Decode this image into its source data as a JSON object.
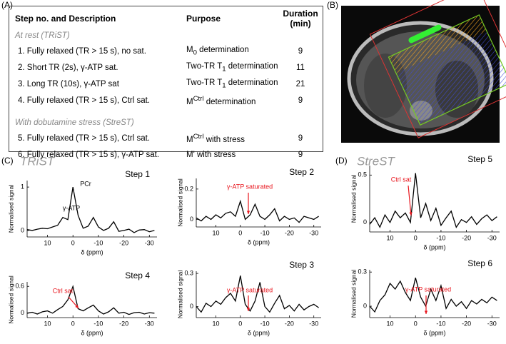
{
  "panel_labels": [
    "(A)",
    "(B)",
    "(C)",
    "(D)"
  ],
  "panel_titles": [
    "TRiST",
    "StreST"
  ],
  "table": {
    "header": [
      "Step no. and Description",
      "Purpose",
      "Duration\n(min)"
    ],
    "sections": [
      {
        "title": "At rest (TRiST)",
        "rows": [
          {
            "step": "1. Fully relaxed (TR > 15 s), no sat.",
            "purpose": [
              {
                "t": "M"
              },
              {
                "sub": "0"
              },
              {
                "t": " determination"
              }
            ],
            "duration": 9
          },
          {
            "step": "2. Short TR (2s), γ-ATP sat.",
            "purpose": [
              {
                "t": "Two-TR T"
              },
              {
                "sub": "1"
              },
              {
                "t": " determination"
              }
            ],
            "duration": 11
          },
          {
            "step": "3. Long TR (10s), γ-ATP sat",
            "purpose": [
              {
                "t": "Two-TR T"
              },
              {
                "sub": "1"
              },
              {
                "t": " determination"
              }
            ],
            "duration": 21
          },
          {
            "step": "4. Fully relaxed (TR > 15 s), Ctrl sat.",
            "purpose": [
              {
                "t": "M"
              },
              {
                "sup": "Ctrl"
              },
              {
                "t": " determination"
              }
            ],
            "duration": 9
          }
        ]
      },
      {
        "title": "With dobutamine stress (StreST)",
        "rows": [
          {
            "step": "5. Fully relaxed (TR > 15 s), Ctrl sat.",
            "purpose": [
              {
                "t": "M"
              },
              {
                "sup": "Ctrl"
              },
              {
                "t": " with stress"
              }
            ],
            "duration": 9
          },
          {
            "step": "6. Fully relaxed (TR > 15 s), γ-ATP sat.",
            "purpose": [
              {
                "t": "M' with stress"
              }
            ],
            "duration": 9
          }
        ]
      }
    ]
  },
  "chart_data": [
    {
      "type": "line",
      "title": "Step 1",
      "xlabel": "δ (ppm)",
      "ylabel": "Normalised signal",
      "color": "#000000",
      "annotations": [
        "PCr",
        "γ-ATP"
      ],
      "annotation_color": "#000000",
      "x": [
        18,
        16,
        14,
        12,
        10,
        8,
        6,
        4,
        2,
        0,
        -2,
        -4,
        -6,
        -8,
        -10,
        -12,
        -14,
        -16,
        -18,
        -20,
        -22,
        -24,
        -26,
        -28,
        -30,
        -32
      ],
      "values": [
        0.02,
        0.0,
        0.03,
        0.05,
        0.04,
        0.08,
        0.12,
        0.3,
        0.25,
        1.0,
        0.35,
        0.05,
        0.1,
        0.3,
        0.08,
        0.0,
        0.05,
        0.2,
        -0.02,
        0.0,
        0.03,
        -0.05,
        0.01,
        0.02,
        -0.03,
        0.0
      ],
      "xlim": [
        18,
        -33
      ],
      "xticks": [
        10,
        0,
        -10,
        -20,
        -30
      ],
      "ylim": [
        -0.15,
        1.15
      ],
      "yticks": [
        0,
        1
      ]
    },
    {
      "type": "line",
      "title": "Step 2",
      "xlabel": "δ (ppm)",
      "ylabel": "Normalised signal",
      "color": "#000000",
      "annotations": [
        "γ-ATP saturated"
      ],
      "annotation_color": "#e8141c",
      "x": [
        18,
        16,
        14,
        12,
        10,
        8,
        6,
        4,
        2,
        0,
        -2,
        -4,
        -6,
        -8,
        -10,
        -12,
        -14,
        -16,
        -18,
        -20,
        -22,
        -24,
        -26,
        -28,
        -30,
        -32
      ],
      "values": [
        0.01,
        -0.01,
        0.02,
        0.0,
        0.03,
        0.01,
        0.04,
        0.05,
        0.02,
        0.12,
        0.0,
        0.03,
        0.1,
        0.02,
        0.0,
        0.03,
        0.07,
        -0.01,
        0.02,
        0.0,
        0.01,
        -0.02,
        0.02,
        0.01,
        0.0,
        0.02
      ],
      "xlim": [
        18,
        -33
      ],
      "xticks": [
        10,
        0,
        -10,
        -20,
        -30
      ],
      "ylim": [
        -0.05,
        0.27
      ],
      "yticks": [
        0,
        0.2
      ]
    },
    {
      "type": "line",
      "title": "Step 4",
      "xlabel": "δ (ppm)",
      "ylabel": "Normalised signal",
      "color": "#000000",
      "annotations": [
        "Ctrl sat"
      ],
      "annotation_color": "#e8141c",
      "x": [
        18,
        16,
        14,
        12,
        10,
        8,
        6,
        4,
        2,
        0,
        -2,
        -4,
        -6,
        -8,
        -10,
        -12,
        -14,
        -16,
        -18,
        -20,
        -22,
        -24,
        -26,
        -28,
        -30,
        -32
      ],
      "values": [
        0.0,
        0.02,
        -0.02,
        0.03,
        0.05,
        0.0,
        0.08,
        0.15,
        0.3,
        0.6,
        0.1,
        0.05,
        0.12,
        0.18,
        0.05,
        -0.02,
        0.03,
        0.12,
        0.0,
        0.02,
        -0.03,
        0.01,
        0.02,
        -0.02,
        0.01,
        0.0
      ],
      "xlim": [
        18,
        -33
      ],
      "xticks": [
        10,
        0,
        -10,
        -20,
        -30
      ],
      "ylim": [
        -0.1,
        0.7
      ],
      "yticks": [
        0,
        0.6
      ]
    },
    {
      "type": "line",
      "title": "Step 3",
      "xlabel": "δ (ppm)",
      "ylabel": "Normalised signal",
      "color": "#000000",
      "annotations": [
        "γ-ATP saturated"
      ],
      "annotation_color": "#e8141c",
      "x": [
        18,
        16,
        14,
        12,
        10,
        8,
        6,
        4,
        2,
        0,
        -2,
        -4,
        -6,
        -8,
        -10,
        -12,
        -14,
        -16,
        -18,
        -20,
        -22,
        -24,
        -26,
        -28,
        -30,
        -32
      ],
      "values": [
        0.0,
        -0.05,
        0.03,
        0.0,
        0.05,
        0.02,
        0.08,
        0.12,
        0.05,
        0.28,
        0.02,
        -0.04,
        0.05,
        0.22,
        0.0,
        -0.05,
        0.03,
        0.1,
        -0.02,
        0.01,
        -0.04,
        0.02,
        -0.03,
        0.0,
        0.02,
        -0.01
      ],
      "xlim": [
        18,
        -33
      ],
      "xticks": [
        10,
        0,
        -10,
        -20,
        -30
      ],
      "ylim": [
        -0.1,
        0.32
      ],
      "yticks": [
        0,
        0.3
      ]
    },
    {
      "type": "line",
      "title": "Step 5",
      "xlabel": "δ (ppm)",
      "ylabel": "Normalised signal",
      "color": "#000000",
      "annotations": [
        "Ctrl sat"
      ],
      "annotation_color": "#e8141c",
      "x": [
        18,
        16,
        14,
        12,
        10,
        8,
        6,
        4,
        2,
        0,
        -2,
        -4,
        -6,
        -8,
        -10,
        -12,
        -14,
        -16,
        -18,
        -20,
        -22,
        -24,
        -26,
        -28,
        -30,
        -32
      ],
      "values": [
        -0.02,
        0.05,
        -0.05,
        0.08,
        0.0,
        0.12,
        0.05,
        0.1,
        0.0,
        0.52,
        0.05,
        0.2,
        0.02,
        0.15,
        -0.03,
        0.05,
        0.12,
        -0.05,
        0.03,
        0.0,
        0.06,
        -0.02,
        0.04,
        0.08,
        0.02,
        0.06
      ],
      "xlim": [
        18,
        -33
      ],
      "xticks": [
        10,
        0,
        -10,
        -20,
        -30
      ],
      "ylim": [
        -0.1,
        0.6
      ],
      "yticks": [
        0,
        0.5
      ]
    },
    {
      "type": "line",
      "title": "Step 6",
      "xlabel": "δ (ppm)",
      "ylabel": "Normalised signal",
      "color": "#000000",
      "annotations": [
        "γ-ATP saturated"
      ],
      "annotation_color": "#e8141c",
      "x": [
        18,
        16,
        14,
        12,
        10,
        8,
        6,
        4,
        2,
        0,
        -2,
        -4,
        -6,
        -8,
        -10,
        -12,
        -14,
        -16,
        -18,
        -20,
        -22,
        -24,
        -26,
        -28,
        -30,
        -32
      ],
      "values": [
        0.0,
        -0.05,
        0.05,
        0.1,
        0.2,
        0.15,
        0.22,
        0.12,
        0.05,
        0.25,
        0.08,
        0.0,
        0.15,
        0.05,
        0.18,
        -0.02,
        0.06,
        0.0,
        0.04,
        -0.02,
        0.05,
        0.02,
        0.06,
        0.03,
        0.08,
        0.05
      ],
      "xlim": [
        18,
        -33
      ],
      "xticks": [
        10,
        0,
        -10,
        -20,
        -30
      ],
      "ylim": [
        -0.1,
        0.32
      ],
      "yticks": [
        0,
        0.3
      ]
    }
  ]
}
